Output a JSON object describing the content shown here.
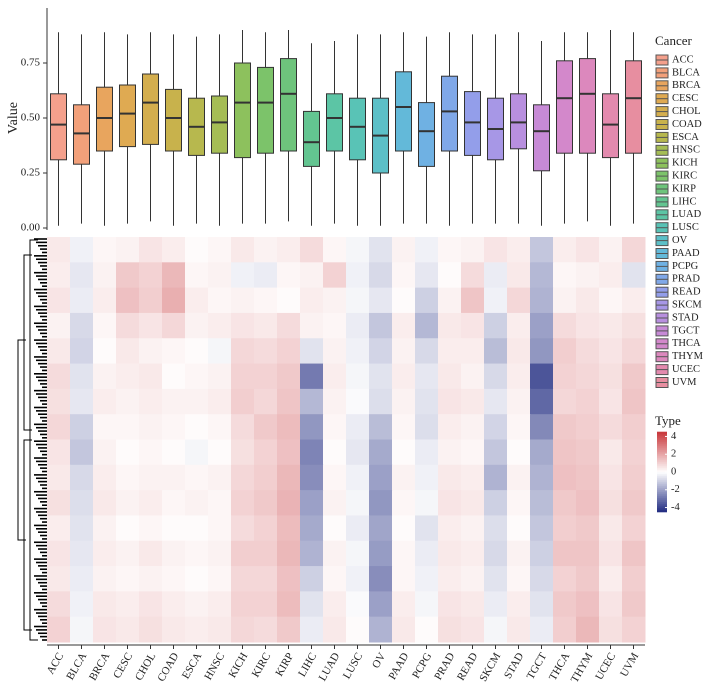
{
  "chart_data": [
    {
      "type": "box",
      "ylabel": "Value",
      "legend_title": "Cancer",
      "legend": "right",
      "categories": [
        "ACC",
        "BLCA",
        "BRCA",
        "CESC",
        "CHOL",
        "COAD",
        "ESCA",
        "HNSC",
        "KICH",
        "KIRC",
        "KIRP",
        "LIHC",
        "LUAD",
        "LUSC",
        "OV",
        "PAAD",
        "PCPG",
        "PRAD",
        "READ",
        "SKCM",
        "STAD",
        "TGCT",
        "THCA",
        "THYM",
        "UCEC",
        "UVM"
      ],
      "colors": [
        "#F4A08C",
        "#F2A07A",
        "#E8A55E",
        "#DFAA52",
        "#D4AE4E",
        "#C8B24C",
        "#B7B84E",
        "#A5BD55",
        "#8DC15D",
        "#7CC36A",
        "#6EC47C",
        "#63C591",
        "#5CC5A5",
        "#59C3B6",
        "#5CC0C8",
        "#63B9D9",
        "#6FB1E3",
        "#80A8E8",
        "#939EEA",
        "#A797E6",
        "#B88FDF",
        "#C78AD6",
        "#D388CB",
        "#DC88BD",
        "#E38AAE",
        "#E78EA0"
      ],
      "min": [
        0.01,
        0.02,
        0.01,
        0.02,
        0.03,
        0.01,
        0.02,
        0.01,
        0.02,
        0.02,
        0.03,
        0.01,
        0.02,
        0.01,
        0.01,
        0.02,
        0.02,
        0.01,
        0.02,
        0.02,
        0.02,
        0.01,
        0.02,
        0.03,
        0.01,
        0.02
      ],
      "q1": [
        0.31,
        0.29,
        0.35,
        0.37,
        0.38,
        0.35,
        0.33,
        0.34,
        0.32,
        0.34,
        0.35,
        0.28,
        0.35,
        0.31,
        0.25,
        0.35,
        0.28,
        0.35,
        0.33,
        0.31,
        0.36,
        0.26,
        0.34,
        0.34,
        0.32,
        0.34
      ],
      "median": [
        0.47,
        0.43,
        0.5,
        0.52,
        0.57,
        0.5,
        0.46,
        0.48,
        0.57,
        0.57,
        0.61,
        0.39,
        0.5,
        0.46,
        0.42,
        0.55,
        0.44,
        0.53,
        0.48,
        0.45,
        0.48,
        0.44,
        0.59,
        0.61,
        0.47,
        0.59
      ],
      "q3": [
        0.61,
        0.56,
        0.64,
        0.65,
        0.7,
        0.63,
        0.59,
        0.6,
        0.75,
        0.73,
        0.77,
        0.53,
        0.61,
        0.59,
        0.59,
        0.71,
        0.57,
        0.69,
        0.62,
        0.59,
        0.61,
        0.56,
        0.76,
        0.77,
        0.61,
        0.76
      ],
      "max": [
        0.89,
        0.88,
        0.89,
        0.88,
        0.89,
        0.88,
        0.87,
        0.88,
        0.9,
        0.89,
        0.9,
        0.84,
        0.85,
        0.88,
        0.88,
        0.89,
        0.87,
        0.89,
        0.88,
        0.88,
        0.89,
        0.85,
        0.89,
        0.89,
        0.9,
        0.89
      ],
      "ylim": [
        0,
        1
      ],
      "yticks": [
        {
          "value": 0,
          "label": "0.00"
        },
        {
          "value": 0.25,
          "label": "0.25"
        },
        {
          "value": 0.5,
          "label": "0.50"
        },
        {
          "value": 0.75,
          "label": "0.75"
        }
      ]
    },
    {
      "type": "heatmap",
      "colorbar_title": "Type",
      "categories": [
        "ACC",
        "BLCA",
        "BRCA",
        "CESC",
        "CHOL",
        "COAD",
        "ESCA",
        "HNSC",
        "KICH",
        "KIRC",
        "KIRP",
        "LIHC",
        "LUAD",
        "LUSC",
        "OV",
        "PAAD",
        "PCPG",
        "PRAD",
        "READ",
        "SKCM",
        "STAD",
        "TGCT",
        "THCA",
        "THYM",
        "UCEC",
        "UVM"
      ],
      "zlim": [
        -4.5,
        4.5
      ],
      "colorbar_ticks": [
        4,
        2,
        0,
        -2,
        -4
      ],
      "colors": {
        "low": "#1F2A80",
        "mid": "#FFFFFF",
        "high": "#C8363A"
      },
      "values": [
        [
          0.5,
          -0.3,
          0.2,
          0.3,
          0.6,
          0.4,
          0.1,
          0.2,
          0.5,
          0.3,
          0.4,
          0.8,
          0.2,
          -0.2,
          -0.6,
          0.3,
          -0.3,
          0.2,
          0.3,
          0.6,
          0.4,
          -1.2,
          0.4,
          0.6,
          0.3,
          0.9
        ],
        [
          0.4,
          -0.5,
          0.3,
          1.2,
          1.0,
          1.6,
          0.2,
          0.3,
          -0.3,
          -0.4,
          0.2,
          0.3,
          1.0,
          -0.3,
          -0.8,
          0.2,
          -0.5,
          0.1,
          0.8,
          -0.4,
          0.5,
          -1.5,
          0.2,
          0.3,
          0.4,
          -0.6
        ],
        [
          0.6,
          -0.4,
          0.4,
          1.4,
          1.1,
          1.8,
          0.4,
          0.2,
          0.3,
          0.2,
          0.1,
          0.4,
          0.3,
          -0.2,
          -0.5,
          0.1,
          -1.0,
          0.3,
          1.3,
          -0.3,
          0.9,
          -1.6,
          0.3,
          0.5,
          0.2,
          0.4
        ],
        [
          0.3,
          -0.8,
          0.2,
          0.8,
          0.6,
          0.9,
          0.3,
          0.4,
          0.6,
          0.5,
          0.8,
          0.3,
          0.2,
          -0.4,
          -1.2,
          0.4,
          -1.5,
          0.5,
          0.6,
          -1.0,
          0.4,
          -2.0,
          0.8,
          0.6,
          0.5,
          0.7
        ],
        [
          0.5,
          -0.9,
          0.1,
          0.5,
          0.3,
          0.2,
          0.1,
          -0.2,
          0.9,
          0.8,
          1.0,
          -0.6,
          0.3,
          -0.3,
          -0.9,
          0.3,
          -0.8,
          0.4,
          0.4,
          -1.4,
          0.5,
          -2.2,
          1.1,
          0.8,
          0.6,
          0.9
        ],
        [
          0.8,
          -0.6,
          0.3,
          0.4,
          0.5,
          0.1,
          0.2,
          0.3,
          1.0,
          1.0,
          1.2,
          -2.8,
          0.4,
          -0.2,
          -0.6,
          0.4,
          -0.5,
          0.5,
          0.3,
          -0.8,
          0.4,
          -3.6,
          1.0,
          0.9,
          0.7,
          1.2
        ],
        [
          0.7,
          -0.5,
          0.4,
          0.3,
          0.4,
          0.3,
          0.3,
          0.4,
          1.1,
          0.9,
          1.3,
          -1.5,
          0.3,
          -0.1,
          -0.7,
          0.3,
          -0.6,
          0.6,
          0.5,
          -0.5,
          0.3,
          -3.2,
          0.9,
          1.0,
          0.6,
          1.3
        ],
        [
          0.9,
          -1.0,
          0.2,
          0.2,
          0.3,
          0.2,
          0.1,
          0.2,
          0.8,
          1.2,
          1.5,
          -2.2,
          0.2,
          -0.4,
          -1.4,
          0.2,
          -0.7,
          0.4,
          0.3,
          -0.9,
          0.2,
          -2.5,
          1.2,
          1.1,
          0.8,
          1.1
        ],
        [
          0.6,
          -1.2,
          0.3,
          0.1,
          0.2,
          0.1,
          -0.2,
          0.1,
          0.7,
          1.0,
          1.4,
          -2.6,
          0.1,
          -0.5,
          -1.8,
          0.1,
          -0.4,
          0.3,
          0.2,
          -1.2,
          0.1,
          -1.8,
          1.3,
          1.2,
          0.5,
          1.0
        ],
        [
          0.5,
          -0.8,
          0.4,
          0.2,
          0.3,
          0.3,
          0.2,
          0.3,
          0.9,
          1.1,
          1.6,
          -2.4,
          0.2,
          -0.3,
          -2.0,
          0.3,
          -0.3,
          0.5,
          0.4,
          -1.6,
          0.3,
          -1.6,
          1.4,
          1.3,
          0.6,
          1.1
        ],
        [
          0.7,
          -0.7,
          0.5,
          0.3,
          0.4,
          0.2,
          0.3,
          0.2,
          1.0,
          1.2,
          1.7,
          -2.0,
          0.3,
          -0.2,
          -2.2,
          0.2,
          -0.2,
          0.6,
          0.5,
          -1.0,
          0.2,
          -1.4,
          1.2,
          1.4,
          0.7,
          1.2
        ],
        [
          0.4,
          -0.6,
          0.3,
          0.1,
          0.2,
          0.1,
          0.1,
          0.2,
          0.8,
          1.0,
          1.5,
          -1.8,
          0.1,
          -0.4,
          -1.9,
          0.1,
          -0.6,
          0.4,
          0.3,
          -0.7,
          0.1,
          -1.2,
          1.1,
          1.2,
          0.5,
          1.0
        ],
        [
          0.6,
          -0.5,
          0.4,
          0.3,
          0.5,
          0.3,
          0.2,
          0.3,
          1.1,
          1.1,
          1.6,
          -1.6,
          0.3,
          -0.2,
          -2.1,
          0.2,
          -0.4,
          0.5,
          0.4,
          -0.8,
          0.3,
          -1.0,
          1.3,
          1.3,
          0.6,
          1.3
        ],
        [
          0.5,
          -0.4,
          0.3,
          0.2,
          0.3,
          0.2,
          0.1,
          0.2,
          0.9,
          0.9,
          1.4,
          -1.0,
          0.2,
          -0.3,
          -2.4,
          0.2,
          -0.3,
          0.4,
          0.3,
          -0.6,
          0.2,
          -0.8,
          1.0,
          1.2,
          0.4,
          1.1
        ],
        [
          0.8,
          -0.3,
          0.5,
          0.4,
          0.6,
          0.4,
          0.3,
          0.4,
          1.0,
          1.0,
          1.5,
          -0.6,
          0.4,
          -0.1,
          -2.0,
          0.4,
          -0.2,
          0.6,
          0.5,
          -0.4,
          0.4,
          -0.6,
          1.2,
          1.4,
          0.6,
          1.2
        ],
        [
          1.0,
          -0.2,
          0.6,
          0.5,
          0.7,
          0.5,
          0.4,
          0.5,
          0.9,
          0.8,
          1.2,
          -0.4,
          0.5,
          0.1,
          -1.6,
          0.5,
          0.1,
          0.7,
          0.6,
          -0.2,
          0.5,
          -0.4,
          1.1,
          1.6,
          0.7,
          1.0
        ]
      ]
    }
  ]
}
